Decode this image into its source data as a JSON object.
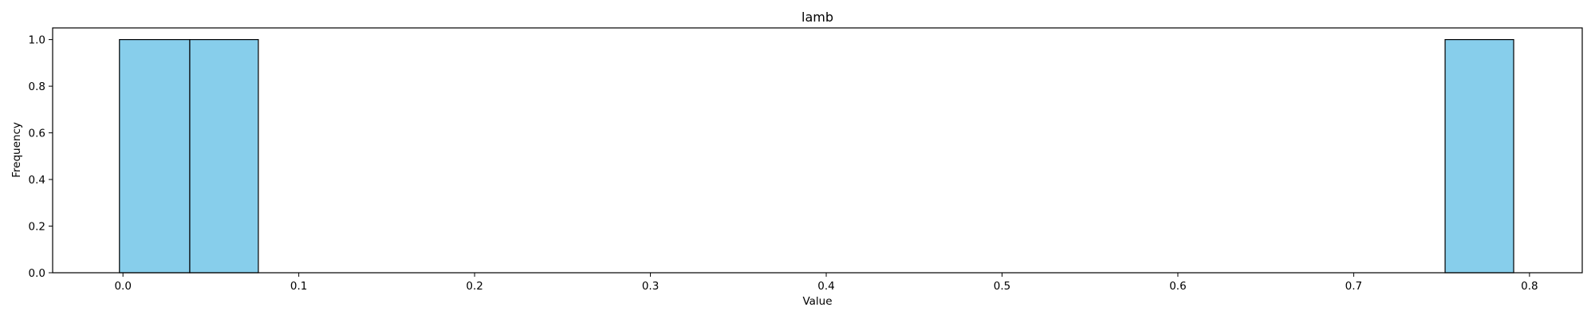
{
  "chart_data": {
    "type": "bar",
    "title": "lamb",
    "xlabel": "Value",
    "ylabel": "Frequency",
    "xlim": [
      -0.04,
      0.83
    ],
    "ylim": [
      0,
      1.05
    ],
    "xticks": [
      "0.0",
      "0.1",
      "0.2",
      "0.3",
      "0.4",
      "0.5",
      "0.6",
      "0.7",
      "0.8"
    ],
    "yticks": [
      "0.0",
      "0.2",
      "0.4",
      "0.6",
      "0.8",
      "1.0"
    ],
    "bins": [
      {
        "start": -0.002,
        "end": 0.038,
        "count": 1
      },
      {
        "start": 0.038,
        "end": 0.077,
        "count": 1
      },
      {
        "start": 0.752,
        "end": 0.791,
        "count": 1
      }
    ],
    "bar_color": "#87ceeb",
    "edge_color": "#000000",
    "grid": false
  }
}
